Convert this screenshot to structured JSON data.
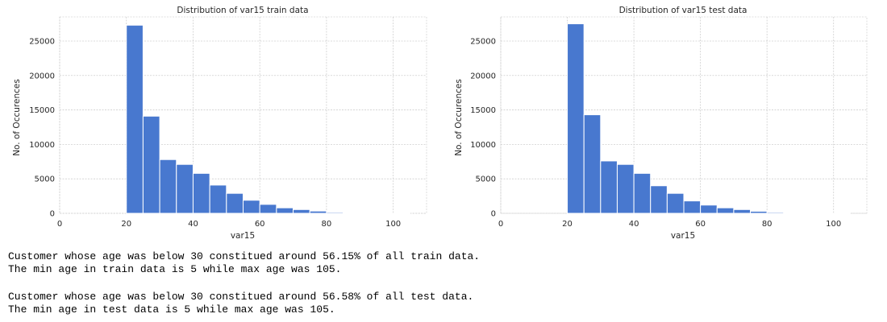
{
  "colors": {
    "bar": "#4878cf"
  },
  "chart_data": [
    {
      "type": "bar",
      "title": "Distribution of var15 train data",
      "xlabel": "var15",
      "ylabel": "No. of Occurences",
      "xlim": [
        0,
        110
      ],
      "ylim": [
        0,
        28500
      ],
      "xticks": [
        0,
        20,
        40,
        60,
        80,
        100
      ],
      "yticks": [
        0,
        5000,
        10000,
        15000,
        20000,
        25000
      ],
      "grid": true,
      "bins": [
        {
          "x0": 20,
          "x1": 25,
          "value": 27300
        },
        {
          "x0": 25,
          "x1": 30,
          "value": 14100
        },
        {
          "x0": 30,
          "x1": 35,
          "value": 7800
        },
        {
          "x0": 35,
          "x1": 40,
          "value": 7100
        },
        {
          "x0": 40,
          "x1": 45,
          "value": 5800
        },
        {
          "x0": 45,
          "x1": 50,
          "value": 4100
        },
        {
          "x0": 50,
          "x1": 55,
          "value": 2900
        },
        {
          "x0": 55,
          "x1": 60,
          "value": 1900
        },
        {
          "x0": 60,
          "x1": 65,
          "value": 1300
        },
        {
          "x0": 65,
          "x1": 70,
          "value": 800
        },
        {
          "x0": 70,
          "x1": 75,
          "value": 550
        },
        {
          "x0": 75,
          "x1": 80,
          "value": 330
        },
        {
          "x0": 80,
          "x1": 85,
          "value": 150
        },
        {
          "x0": 85,
          "x1": 90,
          "value": 80
        },
        {
          "x0": 90,
          "x1": 95,
          "value": 30
        },
        {
          "x0": 95,
          "x1": 100,
          "value": 15
        },
        {
          "x0": 100,
          "x1": 105,
          "value": 5
        }
      ]
    },
    {
      "type": "bar",
      "title": "Distribution of var15 test data",
      "xlabel": "var15",
      "ylabel": "No. of Occurences",
      "xlim": [
        0,
        110
      ],
      "ylim": [
        0,
        28500
      ],
      "xticks": [
        0,
        20,
        40,
        60,
        80,
        100
      ],
      "yticks": [
        0,
        5000,
        10000,
        15000,
        20000,
        25000
      ],
      "grid": true,
      "bins": [
        {
          "x0": 20,
          "x1": 25,
          "value": 27500
        },
        {
          "x0": 25,
          "x1": 30,
          "value": 14300
        },
        {
          "x0": 30,
          "x1": 35,
          "value": 7600
        },
        {
          "x0": 35,
          "x1": 40,
          "value": 7100
        },
        {
          "x0": 40,
          "x1": 45,
          "value": 5800
        },
        {
          "x0": 45,
          "x1": 50,
          "value": 4000
        },
        {
          "x0": 50,
          "x1": 55,
          "value": 2900
        },
        {
          "x0": 55,
          "x1": 60,
          "value": 1800
        },
        {
          "x0": 60,
          "x1": 65,
          "value": 1200
        },
        {
          "x0": 65,
          "x1": 70,
          "value": 800
        },
        {
          "x0": 70,
          "x1": 75,
          "value": 550
        },
        {
          "x0": 75,
          "x1": 80,
          "value": 300
        },
        {
          "x0": 80,
          "x1": 85,
          "value": 150
        },
        {
          "x0": 85,
          "x1": 90,
          "value": 80
        },
        {
          "x0": 90,
          "x1": 95,
          "value": 30
        },
        {
          "x0": 95,
          "x1": 100,
          "value": 15
        },
        {
          "x0": 100,
          "x1": 105,
          "value": 5
        }
      ]
    }
  ],
  "output": {
    "train_line1": "Customer whose age was below 30 constitued around 56.15% of all train data.",
    "train_line2": "The min age in train data is 5 while max age was 105.",
    "test_line1": "Customer whose age was below 30 constitued around 56.58% of all test data.",
    "test_line2": "The min age in test data is 5 while max age was 105."
  }
}
